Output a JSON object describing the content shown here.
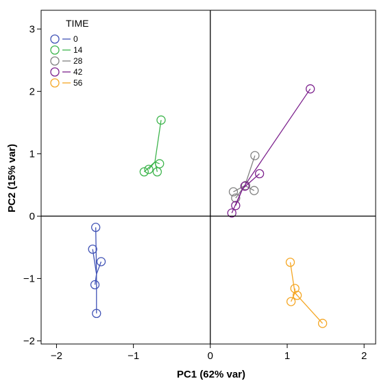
{
  "chart_data": {
    "type": "scatter",
    "xlabel": "PC1 (62% var)",
    "ylabel": "PC2 (15% var)",
    "xlim": [
      -2.2,
      2.15
    ],
    "ylim": [
      -2.05,
      3.3
    ],
    "x_ticks": [
      -2,
      -1,
      0,
      1,
      2
    ],
    "y_ticks": [
      -2,
      -1,
      0,
      1,
      2,
      3
    ],
    "x_tick_labels": [
      "−2",
      "−1",
      "0",
      "1",
      "2"
    ],
    "y_tick_labels": [
      "−2",
      "−1",
      "0",
      "1",
      "2",
      "3"
    ],
    "zero_lines": true,
    "grid": false,
    "legend": {
      "title": "TIME",
      "position": "top-left",
      "labels": [
        "0",
        "14",
        "28",
        "42",
        "56"
      ]
    },
    "series": [
      {
        "name": "0",
        "color": "#3f51b5",
        "hub": [
          -1.48,
          -0.93
        ],
        "points": [
          [
            -1.49,
            -0.18
          ],
          [
            -1.53,
            -0.53
          ],
          [
            -1.42,
            -0.73
          ],
          [
            -1.5,
            -1.1
          ],
          [
            -1.48,
            -1.56
          ]
        ]
      },
      {
        "name": "14",
        "color": "#3cb44b",
        "hub": [
          -0.72,
          0.87
        ],
        "points": [
          [
            -0.64,
            1.54
          ],
          [
            -0.66,
            0.84
          ],
          [
            -0.69,
            0.71
          ],
          [
            -0.8,
            0.75
          ],
          [
            -0.86,
            0.71
          ]
        ]
      },
      {
        "name": "28",
        "color": "#808080",
        "hub": [
          0.45,
          0.49
        ],
        "points": [
          [
            0.58,
            0.97
          ],
          [
            0.46,
            0.49
          ],
          [
            0.57,
            0.41
          ],
          [
            0.3,
            0.39
          ],
          [
            0.33,
            0.29
          ]
        ]
      },
      {
        "name": "42",
        "color": "#7b1f8c",
        "hub": [
          0.42,
          0.44
        ],
        "points": [
          [
            1.3,
            2.04
          ],
          [
            0.64,
            0.68
          ],
          [
            0.45,
            0.48
          ],
          [
            0.33,
            0.17
          ],
          [
            0.28,
            0.05
          ]
        ]
      },
      {
        "name": "56",
        "color": "#f5a623",
        "hub": [
          1.1,
          -1.23
        ],
        "points": [
          [
            1.04,
            -0.74
          ],
          [
            1.1,
            -1.16
          ],
          [
            1.13,
            -1.27
          ],
          [
            1.05,
            -1.37
          ],
          [
            1.46,
            -1.72
          ]
        ]
      }
    ]
  }
}
